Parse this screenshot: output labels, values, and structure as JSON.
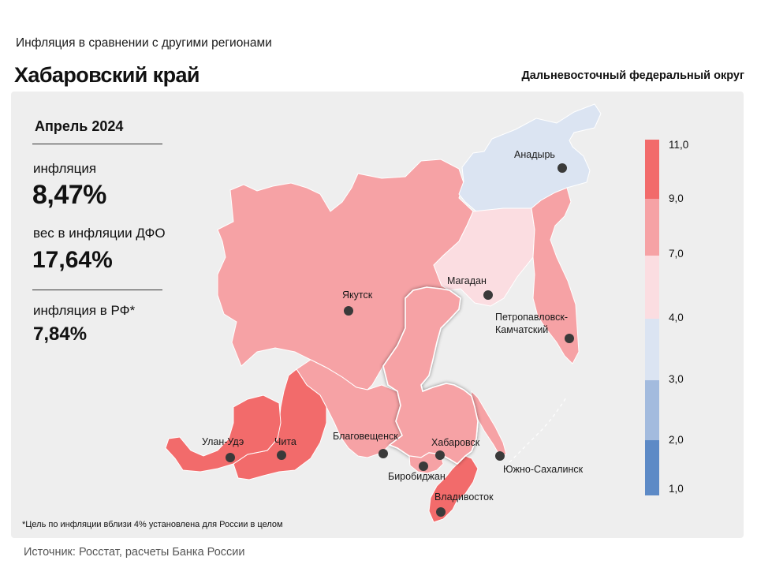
{
  "header": {
    "subtitle": "Инфляция в сравнении с другими регионами",
    "title": "Хабаровский край",
    "district": "Дальневосточный федеральный округ"
  },
  "stats": {
    "period": "Апрель 2024",
    "inflation_label": "инфляция",
    "inflation_value": "8,47%",
    "weight_label": "вес в инфляции ДФО",
    "weight_value": "17,64%",
    "rf_label": "инфляция в РФ*",
    "rf_value": "7,84%"
  },
  "footnote": "*Цель по инфляции вблизи 4% установлена для России в целом",
  "source": "Источник: Росстат, расчеты Банка России",
  "legend": {
    "ticks": [
      "11,0",
      "9,0",
      "7,0",
      "4,0",
      "3,0",
      "2,0",
      "1,0"
    ],
    "colors": [
      "#f26b6b",
      "#f6a2a5",
      "#fbdde1",
      "#dbe4f2",
      "#a3bbde",
      "#5d8ac6"
    ]
  },
  "regions": [
    {
      "id": "yakutia",
      "color": "#f6a2a5",
      "highlighted": false
    },
    {
      "id": "chukotka",
      "color": "#dbe4f2",
      "highlighted": false
    },
    {
      "id": "magadan",
      "color": "#fbdde1",
      "highlighted": false
    },
    {
      "id": "kamchatka",
      "color": "#f6a2a5",
      "highlighted": false
    },
    {
      "id": "khabarovsk",
      "color": "#f6a2a5",
      "highlighted": true
    },
    {
      "id": "amur",
      "color": "#f6a2a5",
      "highlighted": false
    },
    {
      "id": "eao",
      "color": "#f6a2a5",
      "highlighted": false
    },
    {
      "id": "primorye",
      "color": "#f26b6b",
      "highlighted": false
    },
    {
      "id": "sakhalin",
      "color": "#f6a2a5",
      "highlighted": false
    },
    {
      "id": "buryatia",
      "color": "#f26b6b",
      "highlighted": false
    },
    {
      "id": "zabaikalye",
      "color": "#f26b6b",
      "highlighted": false
    }
  ],
  "cities": [
    {
      "id": "anadyr",
      "name": "Анадырь"
    },
    {
      "id": "magadan",
      "name": "Магадан"
    },
    {
      "id": "yakutsk",
      "name": "Якутск"
    },
    {
      "id": "petropavlovsk",
      "name_line1": "Петропавловск-",
      "name_line2": "Камчатский"
    },
    {
      "id": "blagoveshchensk",
      "name": "Благовещенск"
    },
    {
      "id": "khabarovsk",
      "name": "Хабаровск"
    },
    {
      "id": "birobidzhan",
      "name": "Биробиджан"
    },
    {
      "id": "vladivostok",
      "name": "Владивосток"
    },
    {
      "id": "yuzhno",
      "name": "Южно-Сахалинск"
    },
    {
      "id": "ulan-ude",
      "name": "Улан-Удэ"
    },
    {
      "id": "chita",
      "name": "Чита"
    }
  ]
}
